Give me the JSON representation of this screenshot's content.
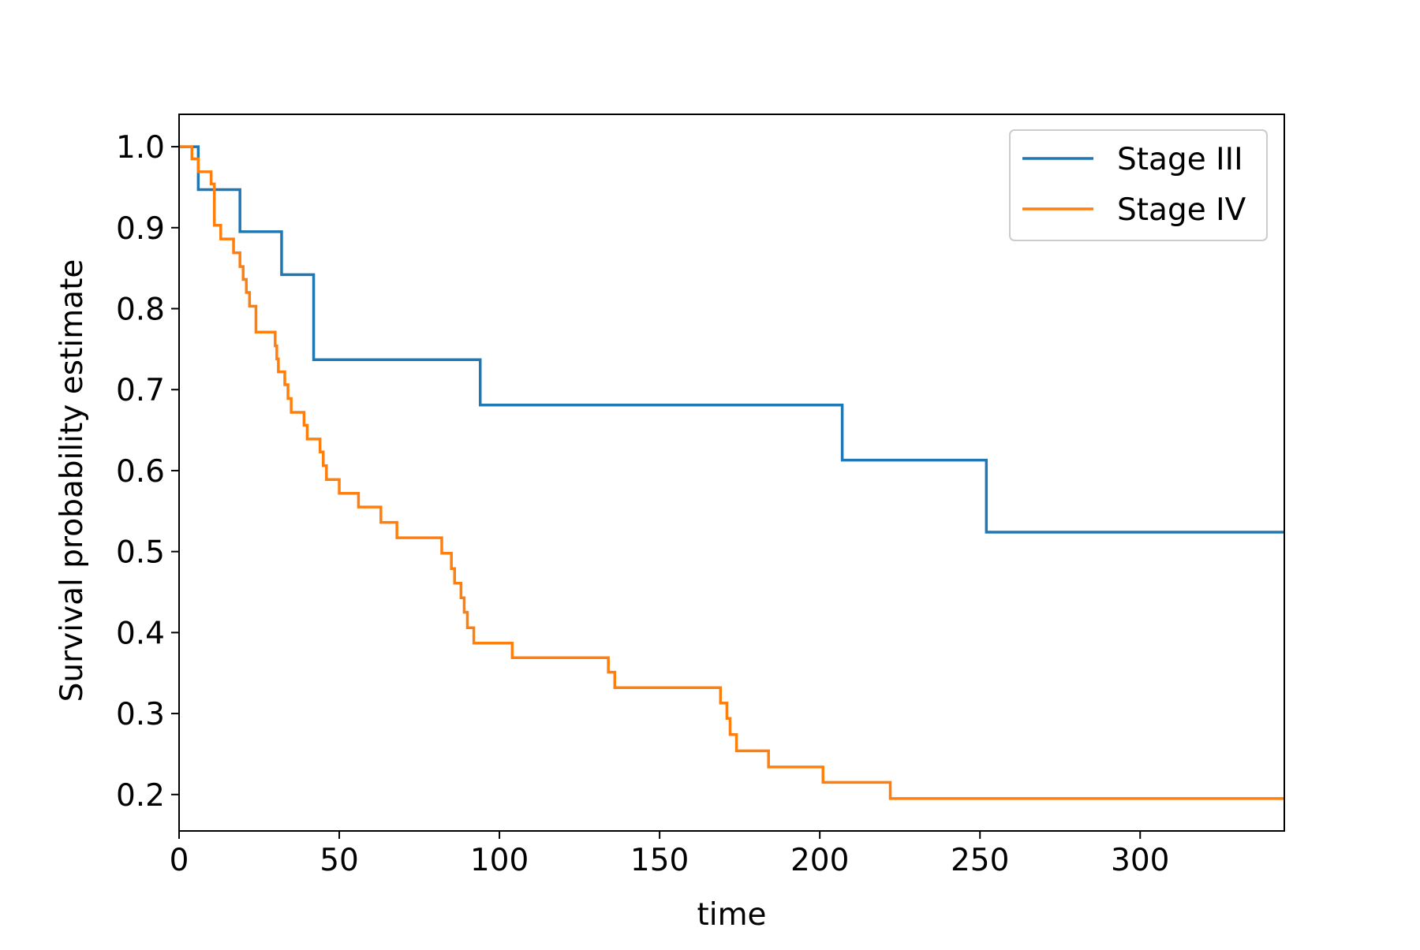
{
  "chart_data": {
    "type": "line",
    "step": true,
    "title": "",
    "xlabel": "time",
    "ylabel": "Survival probability estimate",
    "xlim": [
      0,
      345
    ],
    "ylim": [
      0.155,
      1.04
    ],
    "xticks": [
      0,
      50,
      100,
      150,
      200,
      250,
      300
    ],
    "yticks": [
      0.2,
      0.3,
      0.4,
      0.5,
      0.6,
      0.7,
      0.8,
      0.9,
      1.0
    ],
    "xtick_labels": [
      "0",
      "50",
      "100",
      "150",
      "200",
      "250",
      "300"
    ],
    "ytick_labels": [
      "0.2",
      "0.3",
      "0.4",
      "0.5",
      "0.6",
      "0.7",
      "0.8",
      "0.9",
      "1.0"
    ],
    "grid": false,
    "legend_position": "top-right",
    "series": [
      {
        "name": "Stage III",
        "color": "#1f77b4",
        "x": [
          0,
          6,
          19,
          32,
          42,
          94,
          207,
          252,
          345
        ],
        "y": [
          1.0,
          0.947,
          0.895,
          0.842,
          0.737,
          0.681,
          0.613,
          0.524,
          0.524
        ]
      },
      {
        "name": "Stage IV",
        "color": "#ff7f0e",
        "x": [
          0,
          4,
          6,
          10,
          11,
          13,
          17,
          19,
          20,
          21,
          22,
          24,
          30,
          30.5,
          31,
          33,
          34,
          35,
          39,
          40,
          44,
          45,
          46,
          50,
          56,
          63,
          68,
          82,
          85,
          86,
          88,
          89,
          90,
          92,
          104,
          110,
          134,
          136,
          169,
          171,
          172,
          174,
          184,
          201,
          222,
          345
        ],
        "y": [
          1.0,
          0.985,
          0.969,
          0.954,
          0.903,
          0.886,
          0.869,
          0.852,
          0.836,
          0.82,
          0.803,
          0.771,
          0.754,
          0.738,
          0.722,
          0.706,
          0.689,
          0.672,
          0.656,
          0.639,
          0.623,
          0.606,
          0.589,
          0.572,
          0.555,
          0.536,
          0.517,
          0.498,
          0.479,
          0.461,
          0.443,
          0.425,
          0.406,
          0.387,
          0.369,
          0.369,
          0.351,
          0.332,
          0.313,
          0.294,
          0.274,
          0.254,
          0.234,
          0.215,
          0.195,
          0.195
        ]
      }
    ]
  }
}
